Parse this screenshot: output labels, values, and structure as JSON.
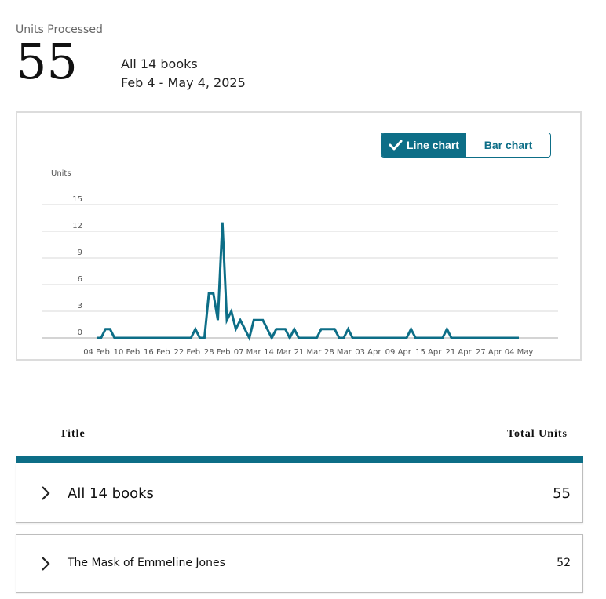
{
  "summary": {
    "kpi_label": "Units Processed",
    "kpi_value": "55",
    "scope": "All 14 books",
    "date_range": "Feb 4 - May 4, 2025"
  },
  "chart_toggle": {
    "line_label": "Line chart",
    "bar_label": "Bar chart",
    "selected": "Line chart"
  },
  "colors": {
    "accent": "#0d6e87",
    "grid": "#d9d9d9"
  },
  "chart_data": {
    "type": "line",
    "ylabel": "Units",
    "ylim": [
      0,
      15
    ],
    "yticks": [
      "0",
      "3",
      "6",
      "9",
      "12",
      "15"
    ],
    "xticks": [
      "04 Feb",
      "10 Feb",
      "16 Feb",
      "22 Feb",
      "28 Feb",
      "07 Mar",
      "14 Mar",
      "21 Mar",
      "28 Mar",
      "03 Apr",
      "09 Apr",
      "15 Apr",
      "21 Apr",
      "27 Apr",
      "04 May"
    ],
    "grid": true,
    "series": [
      {
        "values": [
          0,
          0,
          1,
          1,
          0,
          0,
          0,
          0,
          0,
          0,
          0,
          0,
          0,
          0,
          0,
          0,
          0,
          0,
          0,
          0,
          0,
          0,
          1,
          0,
          0,
          5,
          5,
          2,
          13,
          2,
          3,
          1,
          2,
          1,
          0,
          2,
          2,
          2,
          1,
          0,
          1,
          1,
          1,
          0,
          1,
          0,
          0,
          0,
          0,
          0,
          1,
          1,
          1,
          1,
          0,
          0,
          1,
          0,
          0,
          0,
          0,
          0,
          0,
          0,
          0,
          0,
          0,
          0,
          0,
          0,
          1,
          0,
          0,
          0,
          0,
          0,
          0,
          0,
          1,
          0,
          0,
          0,
          0,
          0,
          0,
          0,
          0,
          0,
          0,
          0,
          0,
          0,
          0,
          0,
          0
        ]
      }
    ]
  },
  "table": {
    "col_title": "Title",
    "col_total": "Total Units",
    "rows": [
      {
        "title": "All 14 books",
        "total": "55"
      },
      {
        "title": "The Mask of Emmeline Jones",
        "total": "52"
      }
    ]
  }
}
